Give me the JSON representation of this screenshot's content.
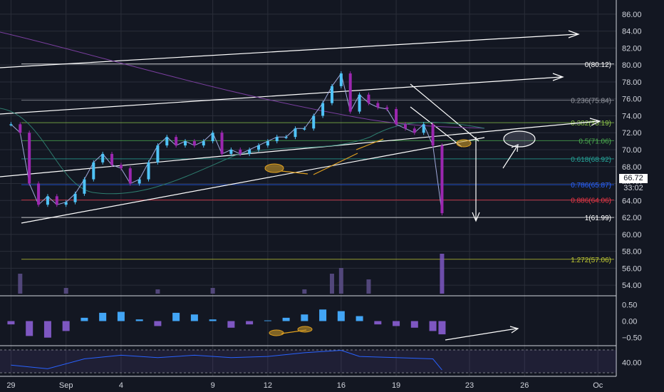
{
  "chart_data": {
    "type": "candlestick",
    "price_axis": {
      "ticks": [
        "86.00",
        "84.00",
        "82.00",
        "80.00",
        "78.00",
        "76.00",
        "74.00",
        "72.00",
        "70.00",
        "68.00",
        "66.00",
        "64.00",
        "62.00",
        "60.00",
        "58.00",
        "56.00",
        "54.00"
      ],
      "range": [
        53,
        87
      ]
    },
    "macd_axis": {
      "ticks": [
        "0.50",
        "0.00",
        "−0.50"
      ],
      "range": [
        -0.7,
        0.7
      ]
    },
    "rsi_axis": {
      "ticks": [
        "40.00"
      ],
      "range": [
        30,
        52
      ]
    },
    "x_axis_labels": [
      "29",
      "Sep",
      "4",
      "9",
      "12",
      "16",
      "19",
      "23",
      "26",
      "Oc"
    ],
    "x_axis_day_index": [
      0,
      3,
      6,
      11,
      14,
      18,
      21,
      25,
      28,
      32
    ],
    "x_range": [
      -0.6,
      33
    ],
    "current_price": "66.72",
    "countdown": "33:02",
    "fib_levels": [
      {
        "label": "0(80.12)",
        "price": 80.12,
        "color": "#ffffff"
      },
      {
        "label": "0.236(75.84)",
        "price": 75.84,
        "color": "#9598a1"
      },
      {
        "label": "0.382(73.19)",
        "price": 73.19,
        "color": "#8bc34a"
      },
      {
        "label": "0.5(71.06)",
        "price": 71.06,
        "color": "#4caf50"
      },
      {
        "label": "0.618(68.92)",
        "price": 68.92,
        "color": "#26a69a"
      },
      {
        "label": "0.786(65.87)",
        "price": 65.87,
        "color": "#2962ff"
      },
      {
        "label": "0.886(64.06)",
        "price": 64.06,
        "color": "#f23645"
      },
      {
        "label": "1(61.99)",
        "price": 61.99,
        "color": "#ffffff"
      },
      {
        "label": "1.272(57.06)",
        "price": 57.06,
        "color": "#c0ca33"
      }
    ],
    "series": [
      {
        "name": "",
        "type": "close",
        "x": [
          0,
          0.5,
          1,
          1.5,
          2,
          2.5,
          3,
          3.5,
          4,
          4.5,
          5,
          5.5,
          6,
          6.5,
          7,
          7.5,
          8,
          8.5,
          9,
          9.5,
          10,
          10.5,
          11,
          11.5,
          12,
          12.5,
          13,
          13.5,
          14,
          14.5,
          15,
          15.5,
          16,
          16.5,
          17,
          17.5,
          18,
          18.5,
          19,
          19.5,
          20,
          20.5,
          21,
          21.5,
          22,
          22.5,
          23,
          23.5
        ],
        "close": [
          73.0,
          72.0,
          66.0,
          63.5,
          64.5,
          63.5,
          63.8,
          64.8,
          66.5,
          68.5,
          69.5,
          68.2,
          67.8,
          66.0,
          66.5,
          68.5,
          70.5,
          71.5,
          70.5,
          71.0,
          70.5,
          71.0,
          72.0,
          69.5,
          70.0,
          69.5,
          70.0,
          70.5,
          71.0,
          71.5,
          71.5,
          72.5,
          72.5,
          74.0,
          75.5,
          77.5,
          79.0,
          74.5,
          76.5,
          75.5,
          75.0,
          74.8,
          73.0,
          72.5,
          72.0,
          73.0,
          70.5,
          62.5
        ]
      }
    ],
    "volume": [
      {
        "x": 0.5,
        "v": 14
      },
      {
        "x": 3,
        "v": 4
      },
      {
        "x": 8,
        "v": 3
      },
      {
        "x": 11,
        "v": 4
      },
      {
        "x": 16,
        "v": 3
      },
      {
        "x": 17.5,
        "v": 14
      },
      {
        "x": 18,
        "v": 18
      },
      {
        "x": 19.5,
        "v": 10
      },
      {
        "x": 23.5,
        "v": 28
      }
    ],
    "macd_histogram": [
      {
        "x": 0,
        "v": -0.1
      },
      {
        "x": 1,
        "v": -0.45
      },
      {
        "x": 2,
        "v": -0.5
      },
      {
        "x": 3,
        "v": -0.3
      },
      {
        "x": 4,
        "v": 0.1
      },
      {
        "x": 5,
        "v": 0.25
      },
      {
        "x": 6,
        "v": 0.28
      },
      {
        "x": 7,
        "v": 0.05
      },
      {
        "x": 8,
        "v": -0.15
      },
      {
        "x": 9,
        "v": 0.25
      },
      {
        "x": 10,
        "v": 0.2
      },
      {
        "x": 11,
        "v": 0.05
      },
      {
        "x": 12,
        "v": -0.2
      },
      {
        "x": 13,
        "v": -0.1
      },
      {
        "x": 14,
        "v": 0.02
      },
      {
        "x": 15,
        "v": 0.1
      },
      {
        "x": 16,
        "v": 0.2
      },
      {
        "x": 17,
        "v": 0.35
      },
      {
        "x": 18,
        "v": 0.3
      },
      {
        "x": 19,
        "v": 0.15
      },
      {
        "x": 20,
        "v": -0.1
      },
      {
        "x": 21,
        "v": -0.15
      },
      {
        "x": 22,
        "v": -0.2
      },
      {
        "x": 23,
        "v": -0.3
      },
      {
        "x": 23.5,
        "v": -0.4
      }
    ],
    "rsi": [
      {
        "x": 0,
        "v": 38
      },
      {
        "x": 2,
        "v": 35
      },
      {
        "x": 4,
        "v": 43
      },
      {
        "x": 6,
        "v": 46
      },
      {
        "x": 8,
        "v": 44
      },
      {
        "x": 10,
        "v": 46
      },
      {
        "x": 12,
        "v": 44
      },
      {
        "x": 14,
        "v": 45
      },
      {
        "x": 16,
        "v": 48
      },
      {
        "x": 18,
        "v": 50
      },
      {
        "x": 19,
        "v": 45
      },
      {
        "x": 21,
        "v": 44
      },
      {
        "x": 23,
        "v": 43
      },
      {
        "x": 23.5,
        "v": 34
      }
    ]
  },
  "colors": {
    "background": "#131722",
    "up": "#4fc3f7",
    "down": "#9c27b0",
    "grid": "#2a2e39",
    "axis_text": "#d1d4dc",
    "price_tag": "#ffffff"
  }
}
